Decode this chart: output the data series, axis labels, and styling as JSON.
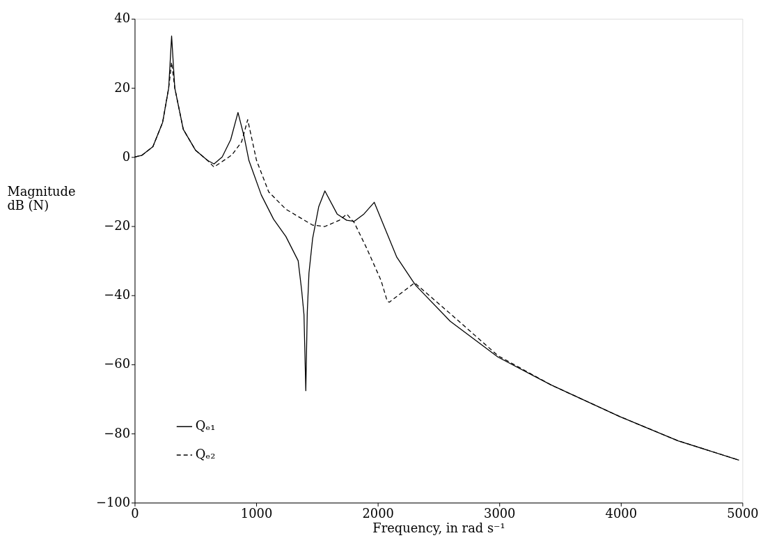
{
  "chart_data": {
    "type": "line",
    "xlabel": "Frequency, in rad s⁻¹",
    "ylabel": "Magnitude dB (N)",
    "xlim": [
      0,
      5000
    ],
    "xticks": [
      0,
      1000,
      2000,
      3000,
      4000,
      5000
    ],
    "ylim": [
      -100,
      40
    ],
    "yticks": [
      -100,
      -80,
      -60,
      -40,
      -20,
      0,
      20,
      40
    ],
    "grid": false,
    "legend": "bottom left",
    "series": [
      {
        "name": "Qₑ₁",
        "color": "#000000",
        "line_style": "solid",
        "x": [
          0,
          60,
          150,
          230,
          280,
          304,
          330,
          400,
          500,
          600,
          653,
          720,
          790,
          850,
          900,
          940,
          1042,
          1143,
          1244,
          1345,
          1374,
          1393,
          1408,
          1420,
          1434,
          1464,
          1514,
          1565,
          1666,
          1745,
          1807,
          1886,
          1971,
          2055,
          2157,
          2286,
          2314,
          2596,
          2990,
          3429,
          3992,
          4471,
          4972
        ],
        "values": [
          0,
          0.5,
          3,
          10,
          20,
          35,
          20,
          8,
          2,
          -1,
          -2,
          0,
          5,
          12.9,
          6,
          -1,
          -11,
          -18,
          -23,
          -30,
          -38.6,
          -45.6,
          -67.6,
          -45,
          -33.6,
          -23.6,
          -14.4,
          -9.8,
          -16.5,
          -18.3,
          -18.6,
          -16.5,
          -13.1,
          -20.3,
          -29,
          -35.8,
          -37.2,
          -47.5,
          -57.9,
          -66,
          -75.1,
          -82.1,
          -87.7
        ]
      },
      {
        "name": "Qₑ₂",
        "color": "#000000",
        "line_style": "dashed",
        "x": [
          0,
          60,
          150,
          230,
          280,
          304,
          330,
          400,
          500,
          600,
          653,
          800,
          880,
          930,
          1002,
          1103,
          1244,
          1464,
          1565,
          1684,
          1745,
          1807,
          1909,
          2027,
          2078,
          2095,
          2303,
          2596,
          2990,
          3429,
          3992,
          4471,
          4972
        ],
        "values": [
          0,
          0.5,
          3,
          10,
          20,
          27.4,
          20,
          8,
          2,
          -1,
          -2.9,
          0.6,
          4.4,
          10.8,
          -0.9,
          -10.1,
          -15.1,
          -19.7,
          -20.1,
          -18.3,
          -16.5,
          -19,
          -26.4,
          -35.7,
          -41.7,
          -42,
          -36.4,
          -45.3,
          -57.5,
          -66,
          -75.1,
          -82.1,
          -87.7
        ]
      }
    ]
  }
}
